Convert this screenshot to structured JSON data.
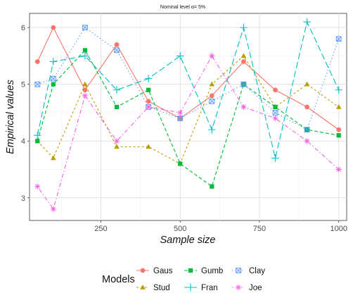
{
  "chart_data": {
    "type": "line",
    "title": "Nominal level α= 5%",
    "xlabel": "Sample size",
    "ylabel": "Empirical values",
    "x": [
      50,
      100,
      200,
      300,
      400,
      500,
      600,
      700,
      800,
      900,
      1000
    ],
    "xlim": [
      25,
      1025
    ],
    "ylim": [
      2.6,
      6.25
    ],
    "xticks": [
      250,
      500,
      750,
      1000
    ],
    "yticks": [
      3,
      4,
      5,
      6
    ],
    "grid": true,
    "legend_title": "Models",
    "legend_position": "bottom",
    "series": [
      {
        "name": "Gaus",
        "color": "#F8766D",
        "dash": "solid",
        "marker": "circle",
        "values": [
          5.4,
          6.0,
          4.9,
          5.7,
          4.7,
          4.4,
          4.8,
          5.4,
          4.9,
          4.6,
          4.2
        ]
      },
      {
        "name": "Stud",
        "color": "#B79F00",
        "dash": "short-dash",
        "marker": "triangle",
        "values": [
          4.0,
          3.7,
          5.0,
          3.9,
          3.9,
          3.6,
          5.0,
          5.5,
          4.6,
          5.0,
          4.6
        ]
      },
      {
        "name": "Gumb",
        "color": "#00BA38",
        "dash": "dash",
        "marker": "square",
        "values": [
          4.0,
          5.0,
          5.6,
          4.6,
          4.9,
          3.6,
          3.2,
          5.0,
          4.6,
          4.2,
          4.1
        ]
      },
      {
        "name": "Fran",
        "color": "#00BFC4",
        "dash": "long-dash",
        "marker": "plus",
        "values": [
          4.1,
          5.4,
          5.5,
          4.9,
          5.1,
          5.5,
          4.2,
          6.0,
          3.7,
          6.1,
          4.9
        ]
      },
      {
        "name": "Clay",
        "color": "#619CFF",
        "dash": "dotted",
        "marker": "boxed-x",
        "values": [
          5.0,
          5.1,
          6.0,
          5.6,
          4.6,
          4.4,
          4.7,
          5.0,
          4.5,
          4.2,
          5.8
        ]
      },
      {
        "name": "Joe",
        "color": "#F564E3",
        "dash": "dot-dash",
        "marker": "asterisk",
        "values": [
          3.2,
          2.8,
          4.8,
          4.0,
          4.6,
          4.5,
          5.5,
          4.6,
          4.4,
          4.0,
          3.5
        ]
      }
    ]
  }
}
